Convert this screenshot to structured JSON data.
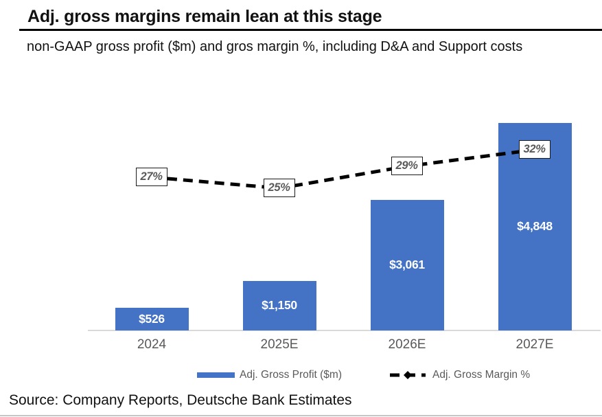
{
  "header": {
    "title": "Adj. gross margins remain lean at this stage",
    "subtitle": "non-GAAP gross profit ($m) and gros margin %, including D&A and Support costs"
  },
  "chart_data": {
    "type": "bar",
    "subtype": "bar-line-combo",
    "categories": [
      "2024",
      "2025E",
      "2026E",
      "2027E"
    ],
    "series": [
      {
        "name": "Adj. Gross Profit ($m)",
        "type": "bar",
        "values": [
          526,
          1150,
          3061,
          4848
        ],
        "labels": [
          "$526",
          "$1,150",
          "$3,061",
          "$4,848"
        ]
      },
      {
        "name": "Adj. Gross Margin %",
        "type": "line",
        "values": [
          27,
          25,
          29,
          32
        ],
        "labels": [
          "27%",
          "25%",
          "29%",
          "32%"
        ]
      }
    ],
    "title": "Adj. gross margins remain lean at this stage",
    "xlabel": "",
    "ylabel": "",
    "ylim_bars": [
      0,
      5000
    ],
    "ylim_line_pct": [
      20,
      35
    ],
    "grid": false,
    "legend_position": "bottom"
  },
  "colors": {
    "bar": "#4472C4",
    "line": "#000000",
    "axis_line": "#D9D9D9",
    "label_gray": "#595959"
  },
  "footer": {
    "source": "Source: Company Reports, Deutsche Bank Estimates"
  }
}
